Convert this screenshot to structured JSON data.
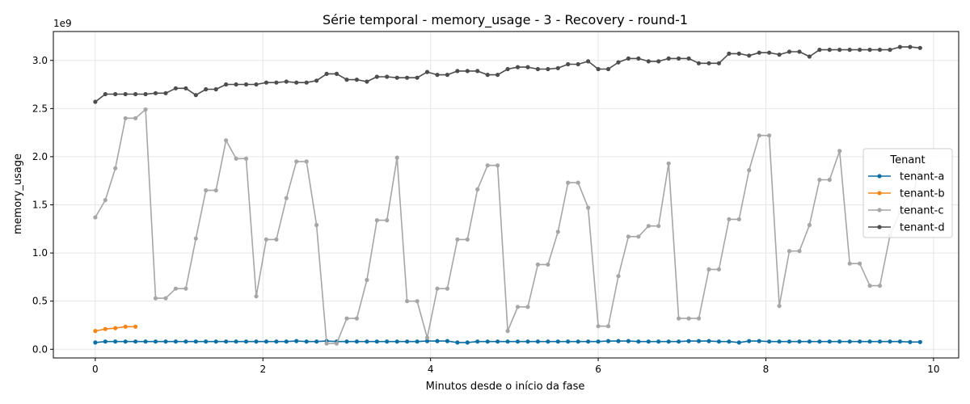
{
  "chart_data": {
    "type": "line",
    "title": "Série temporal - memory_usage - 3 - Recovery - round-1",
    "xlabel": "Minutos desde o início da fase",
    "ylabel": "memory_usage",
    "offset_text": "1e9",
    "xlim": [
      -0.5,
      10.3
    ],
    "ylim": [
      -0.09,
      3.3
    ],
    "xticks": [
      0,
      2,
      4,
      6,
      8,
      10
    ],
    "xtick_labels": [
      "0",
      "2",
      "4",
      "6",
      "8",
      "10"
    ],
    "yticks": [
      0.0,
      0.5,
      1.0,
      1.5,
      2.0,
      2.5,
      3.0
    ],
    "ytick_labels": [
      "0.0",
      "0.5",
      "1.0",
      "1.5",
      "2.0",
      "2.5",
      "3.0"
    ],
    "grid": true,
    "legend": {
      "title": "Tenant",
      "position": "center-right"
    },
    "series": [
      {
        "name": "tenant-a",
        "color": "#0b6fa4",
        "x": [
          0,
          0.12,
          0.24,
          0.36,
          0.48,
          0.6,
          0.72,
          0.84,
          0.96,
          1.08,
          1.2,
          1.32,
          1.44,
          1.56,
          1.68,
          1.8,
          1.92,
          2.04,
          2.16,
          2.28,
          2.4,
          2.52,
          2.64,
          2.76,
          2.88,
          3.0,
          3.12,
          3.24,
          3.36,
          3.48,
          3.6,
          3.72,
          3.84,
          3.96,
          4.08,
          4.2,
          4.32,
          4.44,
          4.56,
          4.68,
          4.8,
          4.92,
          5.04,
          5.16,
          5.28,
          5.4,
          5.52,
          5.64,
          5.76,
          5.88,
          6.0,
          6.12,
          6.24,
          6.36,
          6.48,
          6.6,
          6.72,
          6.84,
          6.96,
          7.08,
          7.2,
          7.32,
          7.44,
          7.56,
          7.68,
          7.8,
          7.92,
          8.04,
          8.16,
          8.28,
          8.4,
          8.52,
          8.64,
          8.76,
          8.88,
          9.0,
          9.12,
          9.24,
          9.36,
          9.48,
          9.6,
          9.72,
          9.84
        ],
        "y": [
          0.07,
          0.08,
          0.08,
          0.08,
          0.08,
          0.08,
          0.08,
          0.08,
          0.08,
          0.08,
          0.08,
          0.08,
          0.08,
          0.08,
          0.08,
          0.08,
          0.08,
          0.08,
          0.08,
          0.08,
          0.085,
          0.08,
          0.08,
          0.085,
          0.08,
          0.08,
          0.08,
          0.08,
          0.08,
          0.08,
          0.08,
          0.08,
          0.08,
          0.085,
          0.085,
          0.085,
          0.07,
          0.07,
          0.08,
          0.08,
          0.08,
          0.08,
          0.08,
          0.08,
          0.08,
          0.08,
          0.08,
          0.08,
          0.08,
          0.08,
          0.08,
          0.085,
          0.085,
          0.085,
          0.08,
          0.08,
          0.08,
          0.08,
          0.08,
          0.085,
          0.085,
          0.085,
          0.08,
          0.08,
          0.07,
          0.085,
          0.085,
          0.08,
          0.08,
          0.08,
          0.08,
          0.08,
          0.08,
          0.08,
          0.08,
          0.08,
          0.08,
          0.08,
          0.08,
          0.08,
          0.08,
          0.075,
          0.075
        ]
      },
      {
        "name": "tenant-b",
        "color": "#f58518",
        "x": [
          0,
          0.12,
          0.24,
          0.36,
          0.48
        ],
        "y": [
          0.19,
          0.21,
          0.22,
          0.235,
          0.235
        ]
      },
      {
        "name": "tenant-c",
        "color": "#a6a6a6",
        "x": [
          0,
          0.12,
          0.24,
          0.36,
          0.48,
          0.6,
          0.72,
          0.84,
          0.96,
          1.08,
          1.2,
          1.32,
          1.44,
          1.56,
          1.68,
          1.8,
          1.92,
          2.04,
          2.16,
          2.28,
          2.4,
          2.52,
          2.64,
          2.76,
          2.88,
          3.0,
          3.12,
          3.24,
          3.36,
          3.48,
          3.6,
          3.72,
          3.84,
          3.96,
          4.08,
          4.2,
          4.32,
          4.44,
          4.56,
          4.68,
          4.8,
          4.92,
          5.04,
          5.16,
          5.28,
          5.4,
          5.52,
          5.64,
          5.76,
          5.88,
          6.0,
          6.12,
          6.24,
          6.36,
          6.48,
          6.6,
          6.72,
          6.84,
          6.96,
          7.08,
          7.2,
          7.32,
          7.44,
          7.56,
          7.68,
          7.8,
          7.92,
          8.04,
          8.16,
          8.28,
          8.4,
          8.52,
          8.64,
          8.76,
          8.88,
          9.0,
          9.12,
          9.24,
          9.36,
          9.48,
          9.6,
          9.72,
          9.84
        ],
        "y": [
          1.37,
          1.55,
          1.88,
          2.4,
          2.4,
          2.49,
          0.53,
          0.53,
          0.63,
          0.63,
          1.15,
          1.65,
          1.65,
          2.17,
          1.98,
          1.98,
          0.55,
          1.14,
          1.14,
          1.57,
          1.95,
          1.95,
          1.29,
          0.06,
          0.06,
          0.32,
          0.32,
          0.72,
          1.34,
          1.34,
          1.99,
          0.5,
          0.5,
          0.12,
          0.63,
          0.63,
          1.14,
          1.14,
          1.66,
          1.91,
          1.91,
          0.19,
          0.44,
          0.44,
          0.88,
          0.88,
          1.22,
          1.73,
          1.73,
          1.47,
          0.24,
          0.24,
          0.76,
          1.17,
          1.17,
          1.28,
          1.28,
          1.93,
          0.32,
          0.32,
          0.32,
          0.83,
          0.83,
          1.35,
          1.35,
          1.86,
          2.22,
          2.22,
          0.45,
          1.02,
          1.02,
          1.29,
          1.76,
          1.76,
          2.06,
          0.89,
          0.89,
          0.66,
          0.66,
          1.18,
          1.43,
          1.43,
          1.95
        ]
      },
      {
        "name": "tenant-d",
        "color": "#4d4d4d",
        "x": [
          0,
          0.12,
          0.24,
          0.36,
          0.48,
          0.6,
          0.72,
          0.84,
          0.96,
          1.08,
          1.2,
          1.32,
          1.44,
          1.56,
          1.68,
          1.8,
          1.92,
          2.04,
          2.16,
          2.28,
          2.4,
          2.52,
          2.64,
          2.76,
          2.88,
          3.0,
          3.12,
          3.24,
          3.36,
          3.48,
          3.6,
          3.72,
          3.84,
          3.96,
          4.08,
          4.2,
          4.32,
          4.44,
          4.56,
          4.68,
          4.8,
          4.92,
          5.04,
          5.16,
          5.28,
          5.4,
          5.52,
          5.64,
          5.76,
          5.88,
          6.0,
          6.12,
          6.24,
          6.36,
          6.48,
          6.6,
          6.72,
          6.84,
          6.96,
          7.08,
          7.2,
          7.32,
          7.44,
          7.56,
          7.68,
          7.8,
          7.92,
          8.04,
          8.16,
          8.28,
          8.4,
          8.52,
          8.64,
          8.76,
          8.88,
          9.0,
          9.12,
          9.24,
          9.36,
          9.48,
          9.6,
          9.72,
          9.84
        ],
        "y": [
          2.57,
          2.65,
          2.65,
          2.65,
          2.65,
          2.65,
          2.66,
          2.66,
          2.71,
          2.71,
          2.64,
          2.7,
          2.7,
          2.75,
          2.75,
          2.75,
          2.75,
          2.77,
          2.77,
          2.78,
          2.77,
          2.77,
          2.79,
          2.86,
          2.86,
          2.8,
          2.8,
          2.78,
          2.83,
          2.83,
          2.82,
          2.82,
          2.82,
          2.88,
          2.85,
          2.85,
          2.89,
          2.89,
          2.89,
          2.85,
          2.85,
          2.91,
          2.93,
          2.93,
          2.91,
          2.91,
          2.92,
          2.96,
          2.96,
          2.99,
          2.91,
          2.91,
          2.98,
          3.02,
          3.02,
          2.99,
          2.99,
          3.02,
          3.02,
          3.02,
          2.97,
          2.97,
          2.97,
          3.07,
          3.07,
          3.05,
          3.08,
          3.08,
          3.06,
          3.09,
          3.09,
          3.04,
          3.11,
          3.11,
          3.11,
          3.11,
          3.11,
          3.11,
          3.11,
          3.11,
          3.14,
          3.14,
          3.13
        ]
      }
    ]
  }
}
